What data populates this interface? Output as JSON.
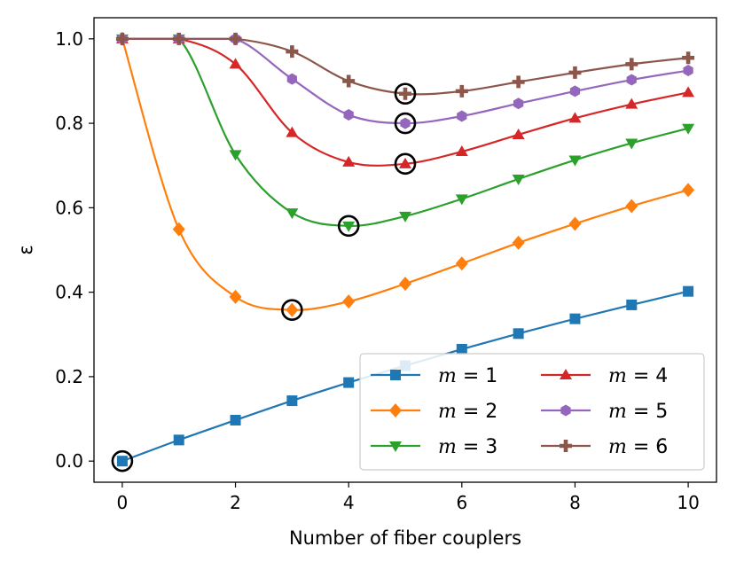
{
  "chart_data": {
    "type": "line",
    "title": "",
    "xlabel": "Number of fiber couplers",
    "ylabel": "ε",
    "xlim": [
      -0.5,
      10.5
    ],
    "ylim": [
      -0.05,
      1.05
    ],
    "xticks": [
      0,
      2,
      4,
      6,
      8,
      10
    ],
    "yticks": [
      0.0,
      0.2,
      0.4,
      0.6,
      0.8,
      1.0
    ],
    "xtick_labels": [
      "0",
      "2",
      "4",
      "6",
      "8",
      "10"
    ],
    "ytick_labels": [
      "0.0",
      "0.2",
      "0.4",
      "0.6",
      "0.8",
      "1.0"
    ],
    "grid": false,
    "legend_position": "lower-right",
    "x": [
      0,
      1,
      2,
      3,
      4,
      5,
      6,
      7,
      8,
      9,
      10
    ],
    "series": [
      {
        "name": "m = 1",
        "legend_m": "m",
        "legend_eq": " = 1",
        "color": "#1f77b4",
        "marker": "square",
        "values": [
          0.0,
          0.05,
          0.097,
          0.143,
          0.186,
          0.226,
          0.265,
          0.302,
          0.337,
          0.37,
          0.402
        ],
        "optimum": [
          0,
          0.0
        ]
      },
      {
        "name": "m = 2",
        "legend_m": "m",
        "legend_eq": " = 2",
        "color": "#ff7f0e",
        "marker": "diamond",
        "values": [
          1.0,
          0.549,
          0.389,
          0.358,
          0.378,
          0.42,
          0.468,
          0.517,
          0.562,
          0.604,
          0.642
        ],
        "optimum": [
          3,
          0.358
        ]
      },
      {
        "name": "m = 3",
        "legend_m": "m",
        "legend_eq": " = 3",
        "color": "#2ca02c",
        "marker": "triangle-down",
        "values": [
          1.0,
          1.0,
          0.726,
          0.588,
          0.557,
          0.58,
          0.621,
          0.668,
          0.713,
          0.753,
          0.788
        ],
        "optimum": [
          4,
          0.557
        ]
      },
      {
        "name": "m = 4",
        "legend_m": "m",
        "legend_eq": " = 4",
        "color": "#d62728",
        "marker": "triangle-up",
        "values": [
          1.0,
          1.0,
          0.94,
          0.778,
          0.708,
          0.704,
          0.733,
          0.773,
          0.812,
          0.845,
          0.873
        ],
        "optimum": [
          5,
          0.704
        ]
      },
      {
        "name": "m = 5",
        "legend_m": "m",
        "legend_eq": " = 5",
        "color": "#9467bd",
        "marker": "hexagon",
        "values": [
          1.0,
          1.0,
          1.0,
          0.905,
          0.82,
          0.8,
          0.817,
          0.847,
          0.876,
          0.903,
          0.925
        ],
        "optimum": [
          5,
          0.8
        ]
      },
      {
        "name": "m = 6",
        "legend_m": "m",
        "legend_eq": " = 6",
        "color": "#8c564b",
        "marker": "plus",
        "values": [
          1.0,
          1.0,
          1.0,
          0.97,
          0.9,
          0.87,
          0.876,
          0.898,
          0.92,
          0.94,
          0.955
        ],
        "optimum": [
          5,
          0.87
        ]
      }
    ]
  }
}
